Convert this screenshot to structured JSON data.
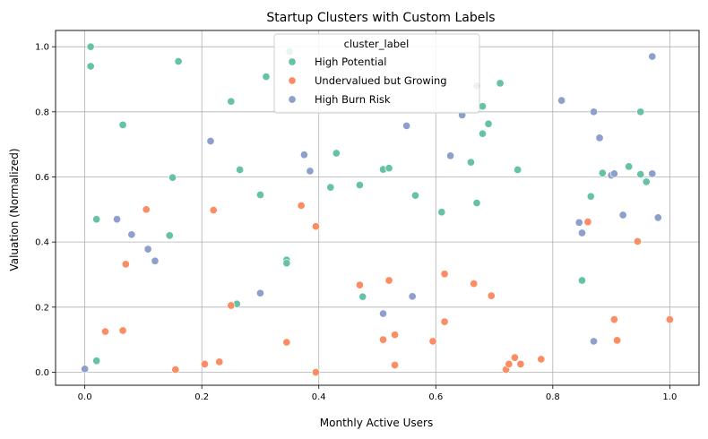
{
  "chart_data": {
    "type": "scatter",
    "title": "Startup Clusters with Custom Labels",
    "xlabel": "Monthly Active Users",
    "ylabel": "Valuation (Normalized)",
    "xlim": [
      -0.05,
      1.05
    ],
    "ylim": [
      -0.04,
      1.05
    ],
    "xticks": [
      0.0,
      0.2,
      0.4,
      0.6,
      0.8,
      1.0
    ],
    "xtick_labels": [
      "0.0",
      "0.2",
      "0.4",
      "0.6",
      "0.8",
      "1.0"
    ],
    "yticks": [
      0.0,
      0.2,
      0.4,
      0.6,
      0.8,
      1.0
    ],
    "ytick_labels": [
      "0.0",
      "0.2",
      "0.4",
      "0.6",
      "0.8",
      "1.0"
    ],
    "grid": true,
    "legend": {
      "title": "cluster_label",
      "placement": "upper-center"
    },
    "series": [
      {
        "name": "High Potential",
        "color": "#66c2a5",
        "points": [
          [
            0.01,
            1.0
          ],
          [
            0.01,
            0.94
          ],
          [
            0.16,
            0.955
          ],
          [
            0.065,
            0.76
          ],
          [
            0.25,
            0.832
          ],
          [
            0.31,
            0.908
          ],
          [
            0.35,
            0.985
          ],
          [
            0.71,
            0.888
          ],
          [
            0.68,
            0.817
          ],
          [
            0.69,
            0.763
          ],
          [
            0.68,
            0.733
          ],
          [
            0.95,
            0.8
          ],
          [
            0.02,
            0.47
          ],
          [
            0.15,
            0.598
          ],
          [
            0.145,
            0.42
          ],
          [
            0.02,
            0.035
          ],
          [
            0.26,
            0.21
          ],
          [
            0.265,
            0.622
          ],
          [
            0.3,
            0.545
          ],
          [
            0.345,
            0.345
          ],
          [
            0.345,
            0.335
          ],
          [
            0.385,
            0.62
          ],
          [
            0.43,
            0.673
          ],
          [
            0.42,
            0.568
          ],
          [
            0.47,
            0.575
          ],
          [
            0.475,
            0.232
          ],
          [
            0.51,
            0.623
          ],
          [
            0.52,
            0.627
          ],
          [
            0.565,
            0.543
          ],
          [
            0.61,
            0.492
          ],
          [
            0.66,
            0.645
          ],
          [
            0.67,
            0.52
          ],
          [
            0.74,
            0.622
          ],
          [
            0.85,
            0.282
          ],
          [
            0.865,
            0.54
          ],
          [
            0.885,
            0.612
          ],
          [
            0.93,
            0.632
          ],
          [
            0.95,
            0.608
          ],
          [
            0.96,
            0.585
          ]
        ]
      },
      {
        "name": "Undervalued but Growing",
        "color": "#fc8d62",
        "points": [
          [
            0.105,
            0.5
          ],
          [
            0.22,
            0.498
          ],
          [
            0.07,
            0.332
          ],
          [
            0.035,
            0.125
          ],
          [
            0.065,
            0.128
          ],
          [
            0.155,
            0.008
          ],
          [
            0.205,
            0.025
          ],
          [
            0.23,
            0.032
          ],
          [
            0.25,
            0.205
          ],
          [
            0.345,
            0.092
          ],
          [
            0.37,
            0.512
          ],
          [
            0.395,
            0.448
          ],
          [
            0.395,
            0.0
          ],
          [
            0.47,
            0.268
          ],
          [
            0.52,
            0.282
          ],
          [
            0.51,
            0.1
          ],
          [
            0.53,
            0.115
          ],
          [
            0.53,
            0.022
          ],
          [
            0.595,
            0.095
          ],
          [
            0.615,
            0.302
          ],
          [
            0.615,
            0.155
          ],
          [
            0.665,
            0.272
          ],
          [
            0.695,
            0.235
          ],
          [
            0.72,
            0.008
          ],
          [
            0.725,
            0.025
          ],
          [
            0.735,
            0.045
          ],
          [
            0.745,
            0.025
          ],
          [
            0.78,
            0.04
          ],
          [
            0.86,
            0.462
          ],
          [
            0.945,
            0.402
          ],
          [
            0.905,
            0.162
          ],
          [
            0.91,
            0.098
          ],
          [
            1.0,
            0.162
          ]
        ]
      },
      {
        "name": "High Burn Risk",
        "color": "#8da0cb",
        "points": [
          [
            0.0,
            0.01
          ],
          [
            0.055,
            0.47
          ],
          [
            0.08,
            0.423
          ],
          [
            0.108,
            0.378
          ],
          [
            0.12,
            0.342
          ],
          [
            0.215,
            0.71
          ],
          [
            0.3,
            0.243
          ],
          [
            0.375,
            0.668
          ],
          [
            0.385,
            0.618
          ],
          [
            0.51,
            0.18
          ],
          [
            0.55,
            0.757
          ],
          [
            0.56,
            0.233
          ],
          [
            0.625,
            0.665
          ],
          [
            0.645,
            0.79
          ],
          [
            0.67,
            0.88
          ],
          [
            0.815,
            0.835
          ],
          [
            0.87,
            0.8
          ],
          [
            0.88,
            0.72
          ],
          [
            0.845,
            0.46
          ],
          [
            0.85,
            0.428
          ],
          [
            0.87,
            0.095
          ],
          [
            0.9,
            0.605
          ],
          [
            0.905,
            0.61
          ],
          [
            0.92,
            0.483
          ],
          [
            0.97,
            0.97
          ],
          [
            0.97,
            0.61
          ],
          [
            0.98,
            0.475
          ]
        ]
      }
    ]
  }
}
